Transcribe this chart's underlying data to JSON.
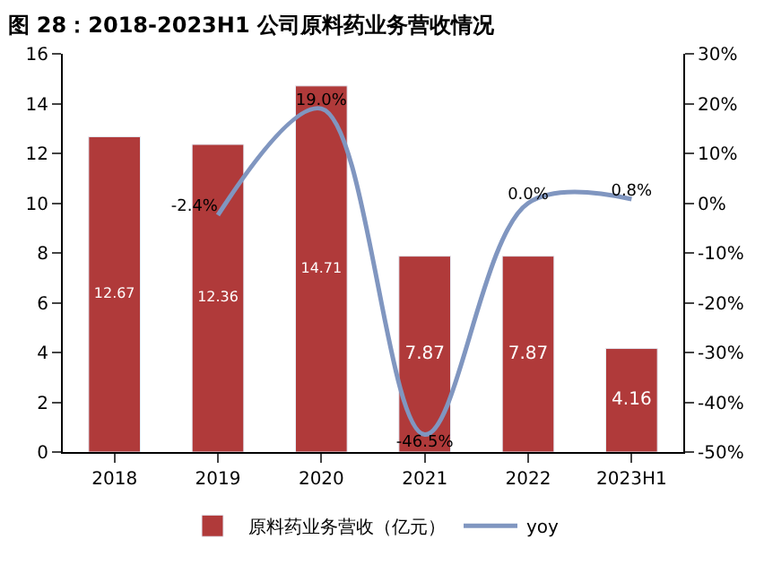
{
  "chart_data": {
    "type": "bar",
    "title": "图 28：2018-2023H1 公司原料药业务营收情况",
    "categories": [
      "2018",
      "2019",
      "2020",
      "2021",
      "2022",
      "2023H1"
    ],
    "series": [
      {
        "name": "原料药业务营收（亿元）",
        "color": "#b03a3a",
        "values": [
          12.67,
          12.36,
          14.71,
          7.87,
          7.87,
          4.16
        ],
        "data_labels": true
      },
      {
        "name": "yoy",
        "type": "line",
        "axis": "y2",
        "color": "#8096c0",
        "values": [
          null,
          -2.4,
          19.0,
          -46.5,
          0.0,
          0.8
        ],
        "value_labels": [
          null,
          "-2.4%",
          "19.0%",
          "-46.5%",
          "0.0%",
          "0.8%"
        ],
        "marker": "none"
      }
    ],
    "ylim": [
      0,
      16
    ],
    "yticks": [
      0,
      2,
      4,
      6,
      8,
      10,
      12,
      14,
      16
    ],
    "y2lim": [
      -50,
      30
    ],
    "y2ticks": [
      {
        "value": -50,
        "label": "-50%"
      },
      {
        "value": -40,
        "label": "-40%"
      },
      {
        "value": -30,
        "label": "-30%"
      },
      {
        "value": -20,
        "label": "-20%"
      },
      {
        "value": -10,
        "label": "-10%"
      },
      {
        "value": 0,
        "label": "0%"
      },
      {
        "value": 10,
        "label": "10%"
      },
      {
        "value": 20,
        "label": "20%"
      },
      {
        "value": 30,
        "label": "30%"
      }
    ],
    "legend": "bottom"
  }
}
